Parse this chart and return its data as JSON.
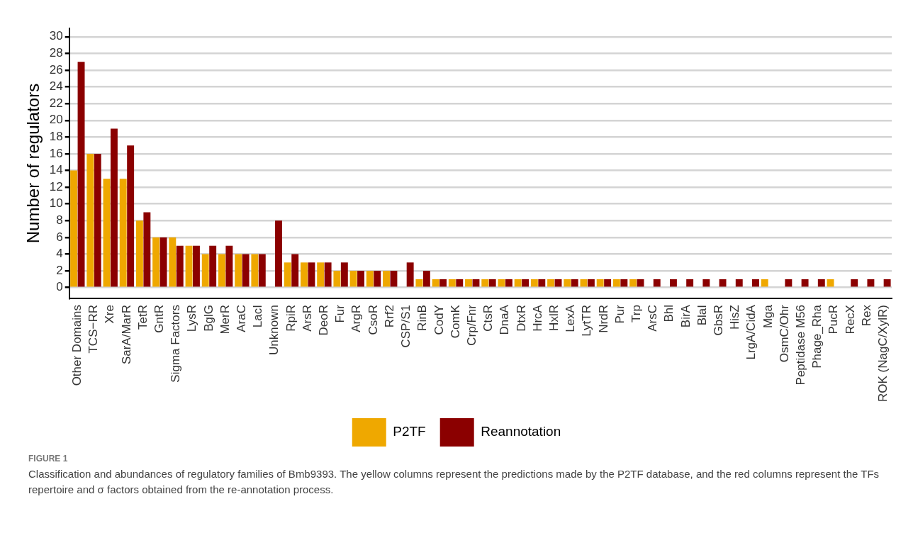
{
  "chart_data": {
    "type": "bar",
    "title": "FIGURE 1",
    "ylabel": "Number of regulators",
    "categories": [
      "Other Domains",
      "TCS−RR",
      "Xre",
      "SarA/MarR",
      "TetR",
      "GntR",
      "Sigma Factors",
      "LysR",
      "BglG",
      "MerR",
      "AraC",
      "LacI",
      "Unknown",
      "RpiR",
      "ArsR",
      "DeoR",
      "Fur",
      "ArgR",
      "CsoR",
      "Rrf2",
      "CSP/S1",
      "RinB",
      "CodY",
      "ComK",
      "Crp/Fnr",
      "CtsR",
      "DnaA",
      "DtxR",
      "HrcA",
      "HxlR",
      "LexA",
      "LytTR",
      "NrdR",
      "Pur",
      "Trp",
      "ArsC",
      "Bhl",
      "BirA",
      "BlaI",
      "GbsR",
      "HisZ",
      "LrgA/CidA",
      "Mga",
      "OsmC/Ohr",
      "Peptidase M56",
      "Phage_Rha",
      "PucR",
      "RecX",
      "Rex",
      "ROK (NagC/XylR)"
    ],
    "series": [
      {
        "name": "P2TF",
        "color": "#efa800",
        "values": [
          14,
          16,
          13,
          13,
          8,
          6,
          6,
          5,
          4,
          4,
          4,
          4,
          null,
          3,
          3,
          3,
          2,
          2,
          2,
          2,
          null,
          1,
          1,
          1,
          1,
          1,
          1,
          1,
          1,
          1,
          1,
          1,
          1,
          1,
          1,
          null,
          null,
          null,
          null,
          null,
          null,
          null,
          1,
          null,
          null,
          null,
          1,
          null,
          null,
          null
        ]
      },
      {
        "name": "Reannotation",
        "color": "#8b0000",
        "values": [
          27,
          16,
          19,
          17,
          9,
          6,
          5,
          5,
          5,
          5,
          4,
          4,
          8,
          4,
          3,
          3,
          3,
          2,
          2,
          2,
          3,
          2,
          1,
          1,
          1,
          1,
          1,
          1,
          1,
          1,
          1,
          1,
          1,
          1,
          1,
          1,
          1,
          1,
          1,
          1,
          1,
          1,
          null,
          1,
          1,
          1,
          null,
          1,
          1,
          1
        ]
      }
    ],
    "ylim": [
      -1.3,
      31
    ],
    "yticks": [
      0,
      2,
      4,
      6,
      8,
      10,
      12,
      14,
      16,
      18,
      20,
      22,
      24,
      26,
      28,
      30
    ],
    "grid": "y",
    "legend": "bottom",
    "annotations": [
      "Classification and abundances of regulatory families of Bmb9393. The yellow columns represent the predictions made by the P2TF database, and the red columns represent the TFs repertoire and σ factors obtained from the re-annotation process."
    ]
  }
}
